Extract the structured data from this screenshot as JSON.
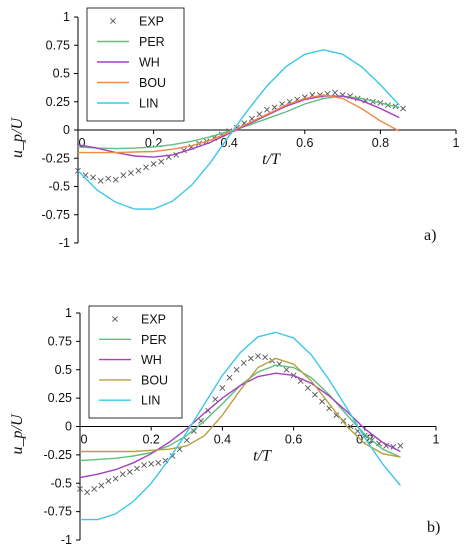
{
  "colors": {
    "EXP": "#555555",
    "PER": "#5fbf7f",
    "WH": "#a63fc2",
    "BOU_a": "#f08a4b",
    "BOU_b": "#b8a040",
    "LIN": "#3cc8e8"
  },
  "chart_data": [
    {
      "type": "line",
      "panel_label": "a)",
      "xlabel": "t/T",
      "ylabel": "u_p/U",
      "xlim": [
        0,
        1
      ],
      "ylim": [
        -1,
        1
      ],
      "x_ticks": [
        "0",
        "0.2",
        "0.4",
        "0.6",
        "0.8",
        "1"
      ],
      "y_ticks": [
        "1",
        "0.75",
        "0.5",
        "0.25",
        "0",
        "-0.25",
        "-0.5",
        "-0.75",
        "-1"
      ],
      "legend": [
        "EXP",
        "PER",
        "WH",
        "BOU",
        "LIN"
      ],
      "legend_position": "top-left",
      "series": [
        {
          "name": "EXP",
          "style": "marker-x",
          "color_key": "EXP",
          "x": [
            0.0,
            0.02,
            0.04,
            0.06,
            0.08,
            0.1,
            0.12,
            0.14,
            0.16,
            0.18,
            0.2,
            0.22,
            0.24,
            0.26,
            0.28,
            0.3,
            0.32,
            0.34,
            0.36,
            0.38,
            0.4,
            0.42,
            0.44,
            0.46,
            0.48,
            0.5,
            0.52,
            0.54,
            0.56,
            0.58,
            0.6,
            0.62,
            0.64,
            0.66,
            0.68,
            0.7,
            0.72,
            0.74,
            0.76,
            0.78,
            0.8,
            0.82,
            0.84,
            0.86
          ],
          "y": [
            -0.36,
            -0.4,
            -0.42,
            -0.45,
            -0.43,
            -0.44,
            -0.4,
            -0.38,
            -0.36,
            -0.33,
            -0.3,
            -0.28,
            -0.24,
            -0.22,
            -0.18,
            -0.15,
            -0.12,
            -0.1,
            -0.07,
            -0.04,
            -0.01,
            0.02,
            0.06,
            0.1,
            0.14,
            0.18,
            0.2,
            0.23,
            0.25,
            0.27,
            0.29,
            0.31,
            0.31,
            0.32,
            0.33,
            0.31,
            0.3,
            0.28,
            0.26,
            0.25,
            0.24,
            0.22,
            0.21,
            0.19
          ]
        },
        {
          "name": "PER",
          "style": "line",
          "color_key": "PER",
          "x": [
            0.0,
            0.05,
            0.1,
            0.15,
            0.2,
            0.25,
            0.3,
            0.35,
            0.4,
            0.45,
            0.5,
            0.55,
            0.6,
            0.65,
            0.7,
            0.75,
            0.8,
            0.85
          ],
          "y": [
            -0.15,
            -0.16,
            -0.165,
            -0.16,
            -0.15,
            -0.13,
            -0.1,
            -0.06,
            -0.01,
            0.04,
            0.1,
            0.16,
            0.23,
            0.28,
            0.3,
            0.28,
            0.24,
            0.2
          ]
        },
        {
          "name": "WH",
          "style": "line",
          "color_key": "WH",
          "x": [
            0.0,
            0.05,
            0.1,
            0.15,
            0.2,
            0.25,
            0.3,
            0.35,
            0.4,
            0.45,
            0.5,
            0.55,
            0.6,
            0.65,
            0.7,
            0.75,
            0.8,
            0.85
          ],
          "y": [
            -0.13,
            -0.16,
            -0.2,
            -0.23,
            -0.24,
            -0.22,
            -0.17,
            -0.11,
            -0.03,
            0.05,
            0.13,
            0.21,
            0.27,
            0.3,
            0.3,
            0.26,
            0.19,
            0.11
          ]
        },
        {
          "name": "BOU",
          "style": "line",
          "color_key": "BOU_a",
          "x": [
            0.0,
            0.05,
            0.1,
            0.15,
            0.2,
            0.25,
            0.3,
            0.35,
            0.4,
            0.45,
            0.5,
            0.55,
            0.6,
            0.65,
            0.7,
            0.75,
            0.8,
            0.85
          ],
          "y": [
            -0.2,
            -0.2,
            -0.2,
            -0.195,
            -0.19,
            -0.17,
            -0.14,
            -0.09,
            -0.02,
            0.06,
            0.14,
            0.22,
            0.28,
            0.31,
            0.28,
            0.19,
            0.08,
            -0.01
          ]
        },
        {
          "name": "LIN",
          "style": "line",
          "color_key": "LIN",
          "x": [
            0.0,
            0.05,
            0.1,
            0.15,
            0.2,
            0.25,
            0.3,
            0.35,
            0.4,
            0.45,
            0.5,
            0.55,
            0.6,
            0.65,
            0.7,
            0.75,
            0.8,
            0.85
          ],
          "y": [
            -0.36,
            -0.53,
            -0.64,
            -0.7,
            -0.7,
            -0.63,
            -0.49,
            -0.29,
            -0.05,
            0.18,
            0.39,
            0.56,
            0.67,
            0.71,
            0.67,
            0.56,
            0.4,
            0.22
          ]
        }
      ]
    },
    {
      "type": "line",
      "panel_label": "b)",
      "xlabel": "t/T",
      "ylabel": "u_p/U",
      "xlim": [
        0,
        1
      ],
      "ylim": [
        -1,
        1
      ],
      "x_ticks": [
        "0",
        "0.2",
        "0.4",
        "0.6",
        "0.8",
        "1"
      ],
      "y_ticks": [
        "1",
        "0.75",
        "0.5",
        "0.25",
        "0",
        "-0.25",
        "-0.5",
        "-0.75",
        "-1"
      ],
      "legend": [
        "EXP",
        "PER",
        "WH",
        "BOU",
        "LIN"
      ],
      "legend_position": "top-left",
      "series": [
        {
          "name": "EXP",
          "style": "marker-x",
          "color_key": "EXP",
          "x": [
            0.0,
            0.02,
            0.04,
            0.06,
            0.08,
            0.1,
            0.12,
            0.14,
            0.16,
            0.18,
            0.2,
            0.22,
            0.24,
            0.26,
            0.28,
            0.3,
            0.32,
            0.34,
            0.36,
            0.38,
            0.4,
            0.42,
            0.44,
            0.46,
            0.48,
            0.5,
            0.52,
            0.54,
            0.56,
            0.58,
            0.6,
            0.62,
            0.64,
            0.66,
            0.68,
            0.7,
            0.72,
            0.74,
            0.76,
            0.78,
            0.8,
            0.82,
            0.84,
            0.86,
            0.88,
            0.9
          ],
          "y": [
            -0.55,
            -0.58,
            -0.55,
            -0.52,
            -0.48,
            -0.46,
            -0.42,
            -0.4,
            -0.37,
            -0.34,
            -0.33,
            -0.32,
            -0.3,
            -0.26,
            -0.2,
            -0.12,
            -0.04,
            0.05,
            0.14,
            0.24,
            0.34,
            0.43,
            0.5,
            0.56,
            0.6,
            0.62,
            0.61,
            0.58,
            0.55,
            0.5,
            0.45,
            0.4,
            0.34,
            0.28,
            0.22,
            0.16,
            0.1,
            0.05,
            0.0,
            -0.04,
            -0.08,
            -0.12,
            -0.15,
            -0.17,
            -0.18,
            -0.17
          ]
        },
        {
          "name": "PER",
          "style": "line",
          "color_key": "PER",
          "x": [
            0.0,
            0.05,
            0.1,
            0.15,
            0.2,
            0.25,
            0.3,
            0.35,
            0.4,
            0.45,
            0.5,
            0.55,
            0.6,
            0.65,
            0.7,
            0.75,
            0.8,
            0.85,
            0.9
          ],
          "y": [
            -0.3,
            -0.29,
            -0.28,
            -0.26,
            -0.23,
            -0.17,
            -0.08,
            0.05,
            0.2,
            0.36,
            0.48,
            0.54,
            0.52,
            0.43,
            0.28,
            0.1,
            -0.07,
            -0.2,
            -0.27
          ]
        },
        {
          "name": "WH",
          "style": "line",
          "color_key": "WH",
          "x": [
            0.0,
            0.05,
            0.1,
            0.15,
            0.2,
            0.25,
            0.3,
            0.35,
            0.4,
            0.45,
            0.5,
            0.55,
            0.6,
            0.65,
            0.7,
            0.75,
            0.8,
            0.85,
            0.9
          ],
          "y": [
            -0.45,
            -0.42,
            -0.38,
            -0.32,
            -0.24,
            -0.14,
            -0.02,
            0.12,
            0.25,
            0.36,
            0.44,
            0.47,
            0.45,
            0.38,
            0.27,
            0.13,
            -0.02,
            -0.14,
            -0.22
          ]
        },
        {
          "name": "BOU",
          "style": "line",
          "color_key": "BOU_b",
          "x": [
            0.0,
            0.05,
            0.1,
            0.15,
            0.2,
            0.25,
            0.3,
            0.35,
            0.4,
            0.45,
            0.5,
            0.55,
            0.6,
            0.65,
            0.7,
            0.75,
            0.8,
            0.85,
            0.9
          ],
          "y": [
            -0.22,
            -0.22,
            -0.22,
            -0.22,
            -0.21,
            -0.2,
            -0.17,
            -0.08,
            0.1,
            0.32,
            0.52,
            0.6,
            0.55,
            0.4,
            0.2,
            0.0,
            -0.15,
            -0.24,
            -0.27
          ]
        },
        {
          "name": "LIN",
          "style": "line",
          "color_key": "LIN",
          "x": [
            0.0,
            0.05,
            0.1,
            0.15,
            0.2,
            0.25,
            0.3,
            0.35,
            0.4,
            0.45,
            0.5,
            0.55,
            0.6,
            0.65,
            0.7,
            0.75,
            0.8,
            0.85,
            0.9
          ],
          "y": [
            -0.82,
            -0.82,
            -0.77,
            -0.66,
            -0.5,
            -0.29,
            -0.05,
            0.2,
            0.45,
            0.65,
            0.79,
            0.83,
            0.78,
            0.63,
            0.41,
            0.16,
            -0.1,
            -0.33,
            -0.52
          ]
        }
      ]
    }
  ]
}
